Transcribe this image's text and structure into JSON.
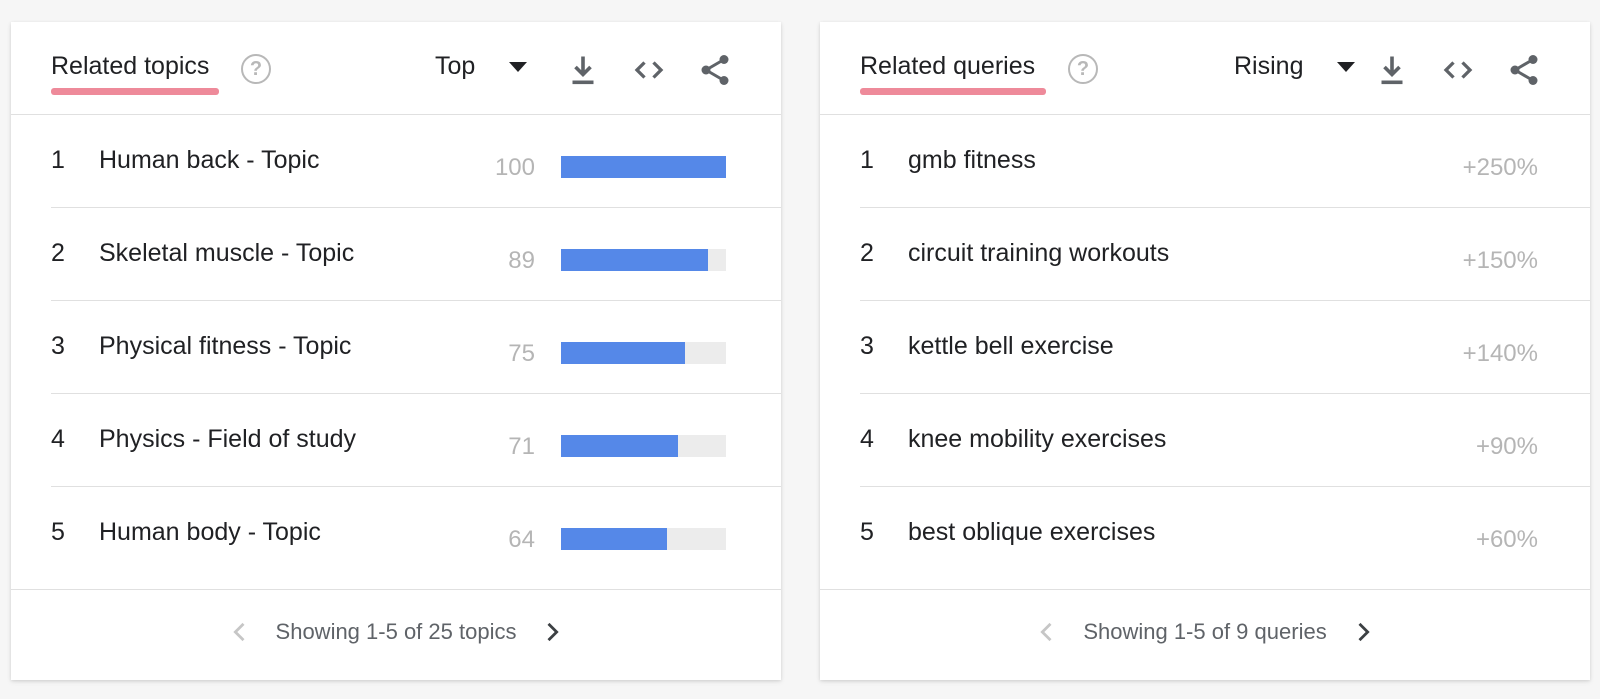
{
  "colors": {
    "accent_underline": "#ee8a9a",
    "bar_fill": "#5588e8",
    "bar_track": "#ececec"
  },
  "left_panel": {
    "title": "Related topics",
    "help_icon": "question-circle-icon",
    "dropdown_value": "Top",
    "download_icon": "download-icon",
    "embed_icon": "code-embed-icon",
    "share_icon": "share-icon",
    "rows": [
      {
        "rank": "1",
        "label": "Human back - Topic",
        "value": "100",
        "fraction": 1.0
      },
      {
        "rank": "2",
        "label": "Skeletal muscle - Topic",
        "value": "89",
        "fraction": 0.89
      },
      {
        "rank": "3",
        "label": "Physical fitness - Topic",
        "value": "75",
        "fraction": 0.75
      },
      {
        "rank": "4",
        "label": "Physics - Field of study",
        "value": "71",
        "fraction": 0.71
      },
      {
        "rank": "5",
        "label": "Human body - Topic",
        "value": "64",
        "fraction": 0.64
      }
    ],
    "pager_text": "Showing 1-5 of 25 topics"
  },
  "right_panel": {
    "title": "Related queries",
    "help_icon": "question-circle-icon",
    "dropdown_value": "Rising",
    "download_icon": "download-icon",
    "embed_icon": "code-embed-icon",
    "share_icon": "share-icon",
    "rows": [
      {
        "rank": "1",
        "label": "gmb fitness",
        "value": "+250%"
      },
      {
        "rank": "2",
        "label": "circuit training workouts",
        "value": "+150%"
      },
      {
        "rank": "3",
        "label": "kettle bell exercise",
        "value": "+140%"
      },
      {
        "rank": "4",
        "label": "knee mobility exercises",
        "value": "+90%"
      },
      {
        "rank": "5",
        "label": "best oblique exercises",
        "value": "+60%"
      }
    ],
    "pager_text": "Showing 1-5 of 9 queries"
  }
}
